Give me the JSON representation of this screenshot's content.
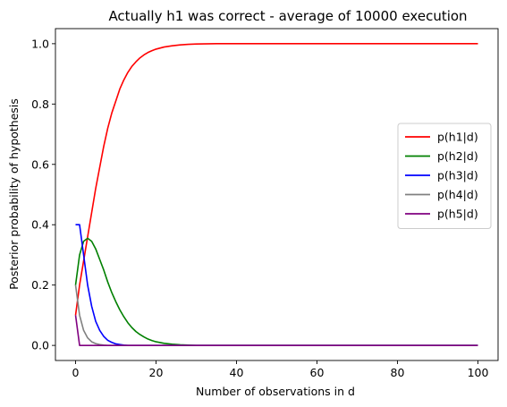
{
  "chart_data": {
    "type": "line",
    "title": "Actually h1 was correct - average of 10000 execution",
    "xlabel": "Number of observations in d",
    "ylabel": "Posterior probability of hypothesis",
    "xlim": [
      -5,
      105
    ],
    "ylim": [
      -0.05,
      1.05
    ],
    "xticks": [
      0,
      20,
      40,
      60,
      80,
      100
    ],
    "yticks": [
      0.0,
      0.2,
      0.4,
      0.6,
      0.8,
      1.0
    ],
    "xtick_labels": [
      "0",
      "20",
      "40",
      "60",
      "80",
      "100"
    ],
    "ytick_labels": [
      "0.0",
      "0.2",
      "0.4",
      "0.6",
      "0.8",
      "1.0"
    ],
    "grid": false,
    "legend_position": "center-right",
    "x": [
      0,
      1,
      2,
      3,
      4,
      5,
      6,
      7,
      8,
      9,
      10,
      11,
      12,
      13,
      14,
      15,
      16,
      17,
      18,
      19,
      20,
      22,
      24,
      26,
      28,
      30,
      35,
      40,
      50,
      60,
      70,
      80,
      90,
      100
    ],
    "series": [
      {
        "name": "p(h1|d)",
        "color": "#ff0000",
        "values": [
          0.1,
          0.2,
          0.28,
          0.36,
          0.44,
          0.52,
          0.59,
          0.66,
          0.72,
          0.77,
          0.81,
          0.85,
          0.88,
          0.905,
          0.925,
          0.94,
          0.953,
          0.963,
          0.971,
          0.977,
          0.982,
          0.989,
          0.993,
          0.996,
          0.998,
          0.999,
          1.0,
          1.0,
          1.0,
          1.0,
          1.0,
          1.0,
          1.0,
          1.0
        ]
      },
      {
        "name": "p(h2|d)",
        "color": "#008000",
        "values": [
          0.2,
          0.3,
          0.345,
          0.355,
          0.345,
          0.32,
          0.285,
          0.25,
          0.21,
          0.175,
          0.145,
          0.118,
          0.095,
          0.075,
          0.059,
          0.046,
          0.036,
          0.028,
          0.021,
          0.016,
          0.012,
          0.007,
          0.004,
          0.002,
          0.001,
          0.0,
          0.0,
          0.0,
          0.0,
          0.0,
          0.0,
          0.0,
          0.0,
          0.0
        ]
      },
      {
        "name": "p(h3|d)",
        "color": "#0000ff",
        "values": [
          0.4,
          0.4,
          0.3,
          0.2,
          0.13,
          0.08,
          0.05,
          0.03,
          0.017,
          0.01,
          0.005,
          0.003,
          0.001,
          0.0,
          0.0,
          0.0,
          0.0,
          0.0,
          0.0,
          0.0,
          0.0,
          0.0,
          0.0,
          0.0,
          0.0,
          0.0,
          0.0,
          0.0,
          0.0,
          0.0,
          0.0,
          0.0,
          0.0,
          0.0
        ]
      },
      {
        "name": "p(h4|d)",
        "color": "#808080",
        "values": [
          0.2,
          0.1,
          0.05,
          0.025,
          0.012,
          0.006,
          0.003,
          0.001,
          0.0,
          0.0,
          0.0,
          0.0,
          0.0,
          0.0,
          0.0,
          0.0,
          0.0,
          0.0,
          0.0,
          0.0,
          0.0,
          0.0,
          0.0,
          0.0,
          0.0,
          0.0,
          0.0,
          0.0,
          0.0,
          0.0,
          0.0,
          0.0,
          0.0,
          0.0
        ]
      },
      {
        "name": "p(h5|d)",
        "color": "#800080",
        "values": [
          0.1,
          0.0,
          0.0,
          0.0,
          0.0,
          0.0,
          0.0,
          0.0,
          0.0,
          0.0,
          0.0,
          0.0,
          0.0,
          0.0,
          0.0,
          0.0,
          0.0,
          0.0,
          0.0,
          0.0,
          0.0,
          0.0,
          0.0,
          0.0,
          0.0,
          0.0,
          0.0,
          0.0,
          0.0,
          0.0,
          0.0,
          0.0,
          0.0,
          0.0
        ]
      }
    ]
  }
}
